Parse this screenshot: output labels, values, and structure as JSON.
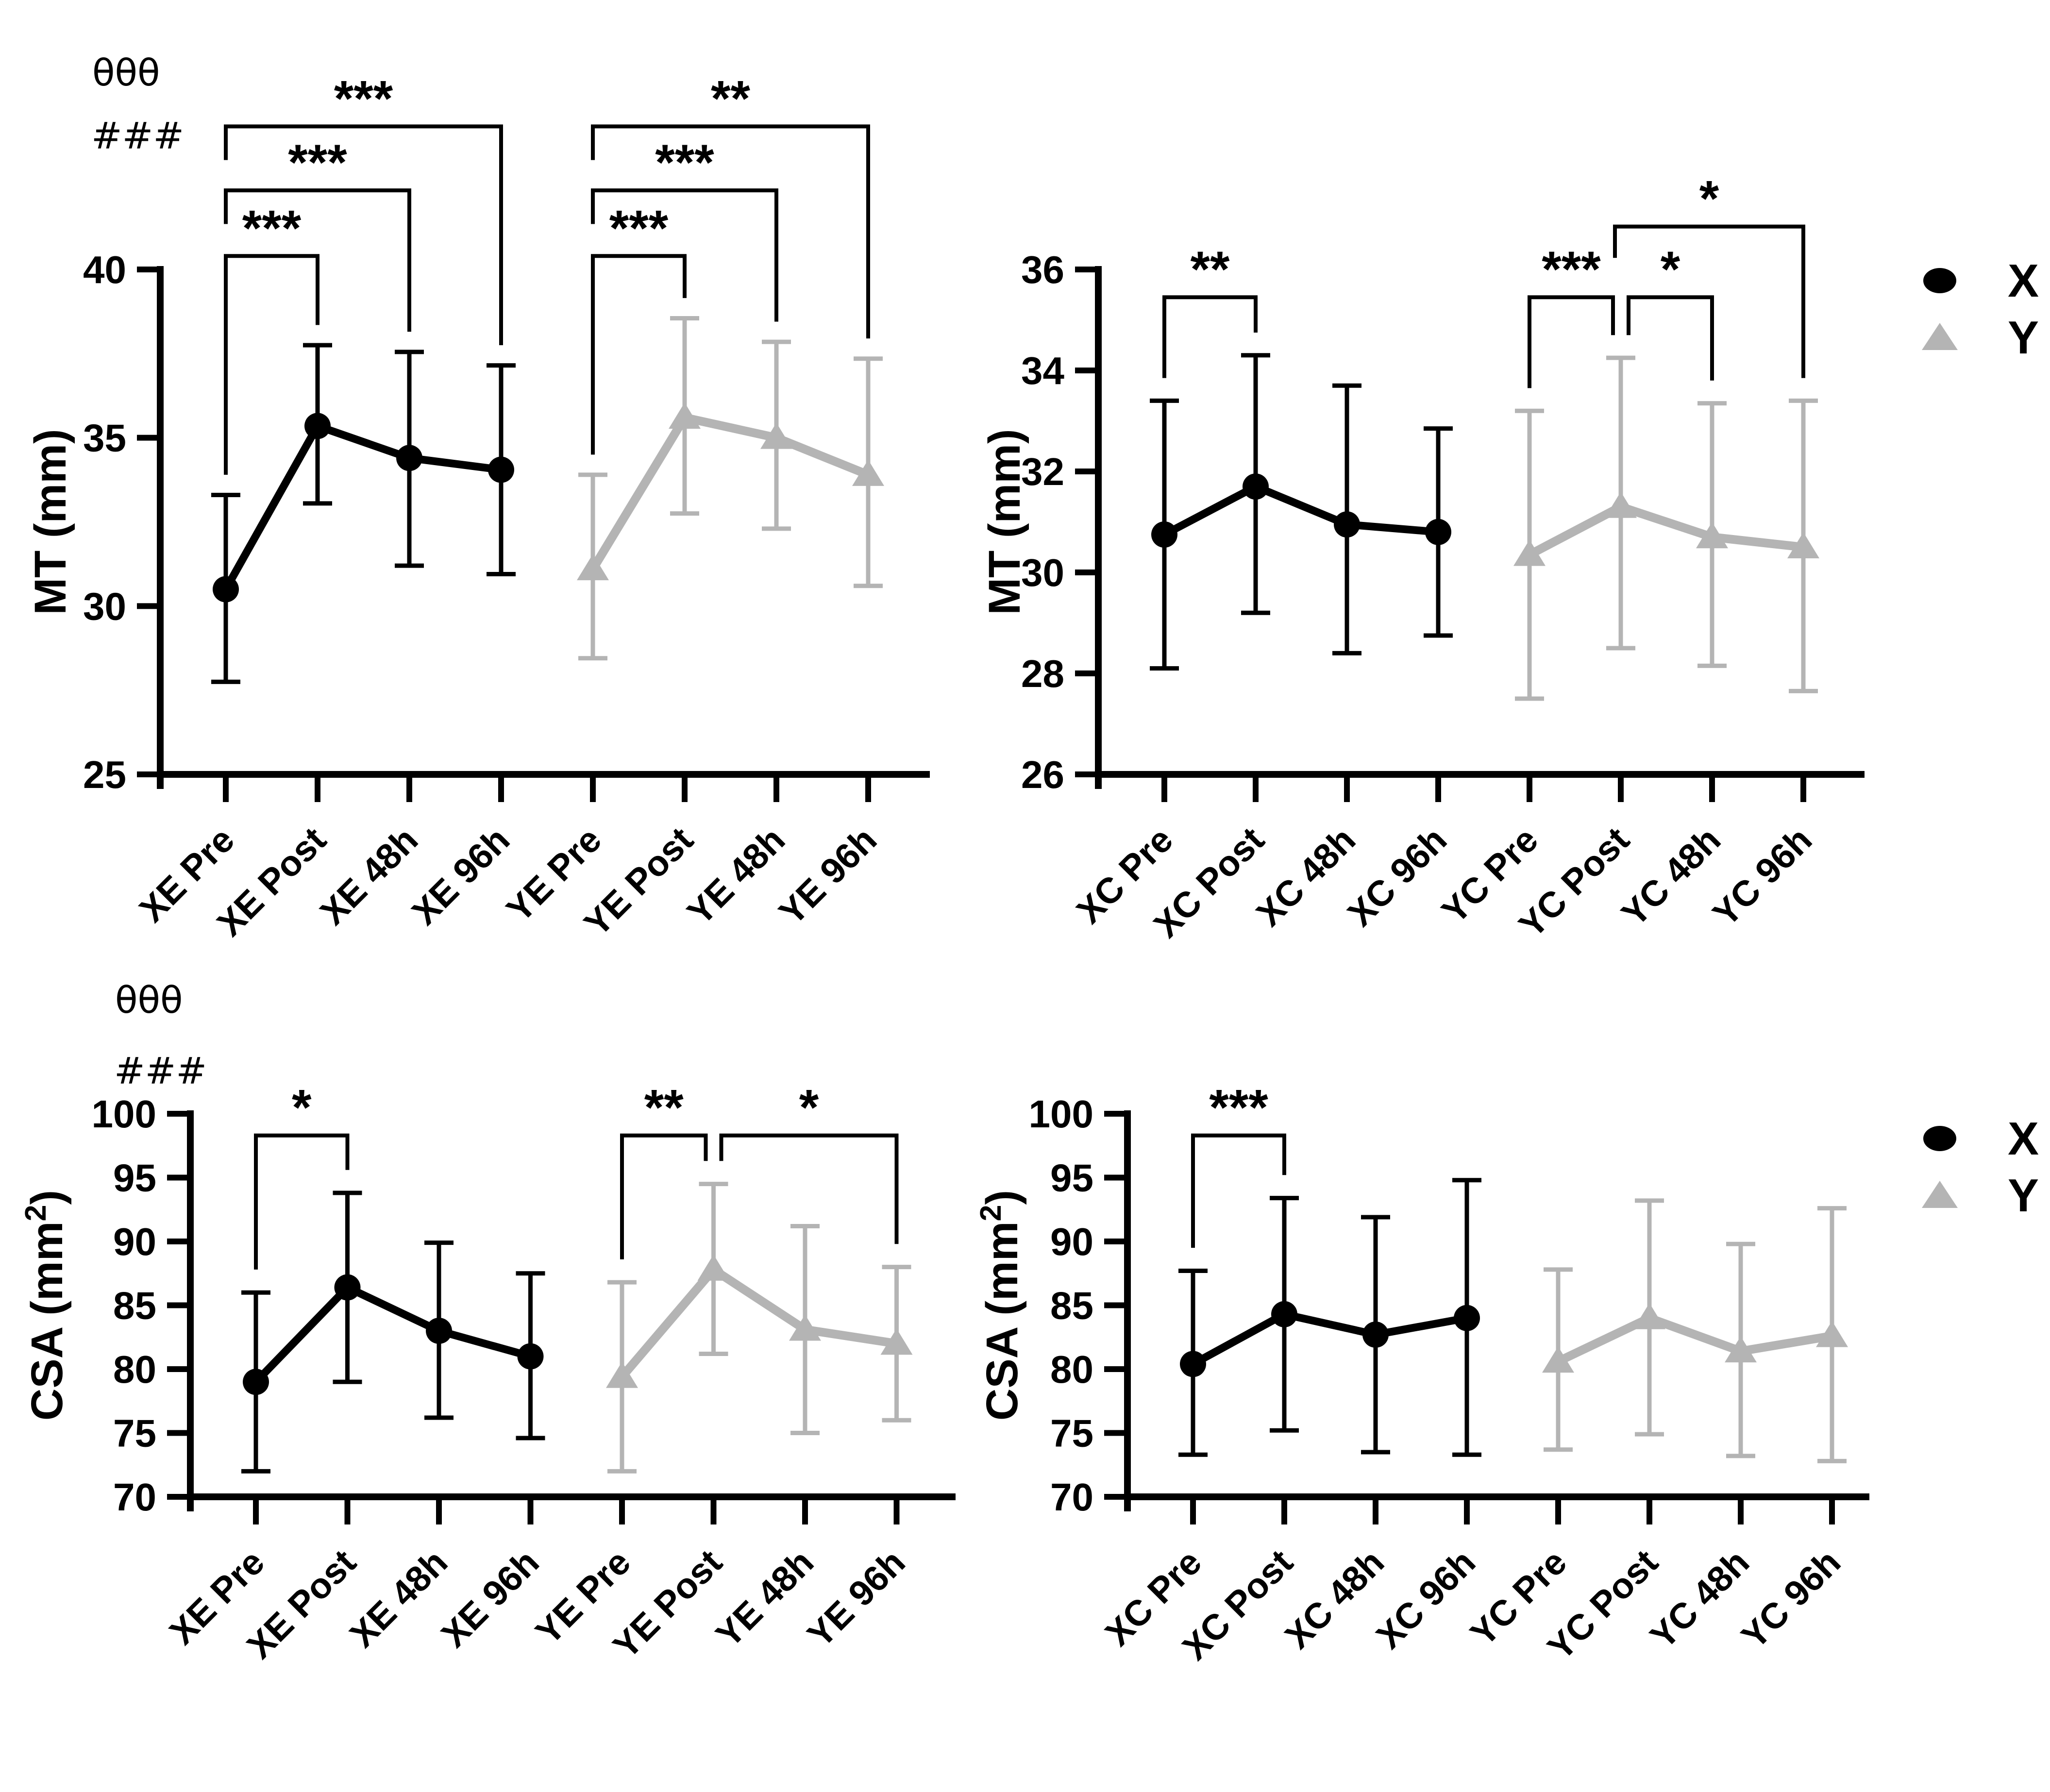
{
  "figure": {
    "background": "#ffffff",
    "annotations": {
      "block1": {
        "line1": "θθθ",
        "line2": "###"
      },
      "block2": {
        "line1": "θθθ",
        "line2": "###"
      }
    },
    "legend": {
      "items": [
        {
          "label": "X",
          "marker": "circle",
          "color": "#000000"
        },
        {
          "label": "Y",
          "marker": "triangle",
          "color": "#b4b4b4"
        }
      ]
    }
  },
  "chart_data": [
    {
      "id": "mt-exercise",
      "type": "line",
      "title": "",
      "ylabel_parts": [
        {
          "t": "MT (mm)"
        }
      ],
      "ylim": [
        25,
        40
      ],
      "yticks": [
        25,
        30,
        35,
        40
      ],
      "categories": [
        "XE Pre",
        "XE Post",
        "XE 48h",
        "XE 96h",
        "YE Pre",
        "YE Post",
        "YE 48h",
        "YE 96h"
      ],
      "series": [
        {
          "name": "X",
          "marker": "circle",
          "color": "#000000",
          "start": 0,
          "means": [
            30.5,
            35.35,
            34.4,
            34.05
          ],
          "upper": [
            33.3,
            37.75,
            37.55,
            37.15
          ],
          "lower": [
            27.75,
            33.05,
            31.2,
            30.95
          ]
        },
        {
          "name": "Y",
          "marker": "triangle",
          "color": "#b4b4b4",
          "start": 4,
          "means": [
            31.1,
            35.6,
            35.0,
            33.9
          ],
          "upper": [
            33.9,
            38.55,
            37.85,
            37.35
          ],
          "lower": [
            28.45,
            32.75,
            32.3,
            30.6
          ]
        }
      ],
      "significance": [
        {
          "from": 0,
          "to": 1,
          "label": "***",
          "bar_y": 40.4,
          "left": "error",
          "right": "error"
        },
        {
          "from": 0,
          "to": 2,
          "label": "***",
          "bar_y": 42.35,
          "left": "stub",
          "right": "error"
        },
        {
          "from": 0,
          "to": 3,
          "label": "***",
          "bar_y": 44.25,
          "left": "stub",
          "right": "error"
        },
        {
          "from": 4,
          "to": 5,
          "label": "***",
          "bar_y": 40.4,
          "left": "error",
          "right": "error"
        },
        {
          "from": 4,
          "to": 6,
          "label": "***",
          "bar_y": 42.35,
          "left": "stub",
          "right": "error"
        },
        {
          "from": 4,
          "to": 7,
          "label": "**",
          "bar_y": 44.25,
          "left": "stub",
          "right": "error"
        }
      ]
    },
    {
      "id": "mt-control",
      "type": "line",
      "title": "",
      "ylabel_parts": [
        {
          "t": "MT (mm)"
        }
      ],
      "ylim": [
        26,
        36
      ],
      "yticks": [
        26,
        28,
        30,
        32,
        34,
        36
      ],
      "categories": [
        "XC Pre",
        "XC Post",
        "XC 48h",
        "XC 96h",
        "YC Pre",
        "YC Post",
        "YC 48h",
        "YC 96h"
      ],
      "series": [
        {
          "name": "X",
          "marker": "circle",
          "color": "#000000",
          "start": 0,
          "means": [
            30.75,
            31.7,
            30.95,
            30.8
          ],
          "upper": [
            33.4,
            34.3,
            33.7,
            32.85
          ],
          "lower": [
            28.1,
            29.2,
            28.4,
            28.75
          ]
        },
        {
          "name": "Y",
          "marker": "triangle",
          "color": "#b4b4b4",
          "start": 4,
          "means": [
            30.35,
            31.3,
            30.7,
            30.5
          ],
          "upper": [
            33.2,
            34.25,
            33.35,
            33.4
          ],
          "lower": [
            27.5,
            28.5,
            28.15,
            27.65
          ]
        }
      ],
      "significance": [
        {
          "from": 0,
          "to": 1,
          "label": "**",
          "bar_y": 35.45,
          "left": "error",
          "right": "error"
        },
        {
          "from": 4,
          "to": 5,
          "label": "***",
          "bar_y": 35.45,
          "left": "error",
          "right": "error",
          "right_dx": -16
        },
        {
          "from": 5,
          "to": 6,
          "label": "*",
          "bar_y": 35.45,
          "left": "error",
          "right": "error",
          "left_dx": 16
        },
        {
          "from": 5,
          "to": 7,
          "label": "*",
          "bar_y": 36.85,
          "left": "stub",
          "right": "error",
          "left_dx": -12
        }
      ]
    },
    {
      "id": "csa-exercise",
      "type": "line",
      "title": "",
      "ylabel_parts": [
        {
          "t": "CSA (mm"
        },
        {
          "t": "2",
          "sup": true
        },
        {
          "t": ")"
        }
      ],
      "ylim": [
        70,
        100
      ],
      "yticks": [
        70,
        75,
        80,
        85,
        90,
        95,
        100
      ],
      "categories": [
        "XE Pre",
        "XE Post",
        "XE 48h",
        "XE 96h",
        "YE Pre",
        "YE Post",
        "YE 48h",
        "YE 96h"
      ],
      "series": [
        {
          "name": "X",
          "marker": "circle",
          "color": "#000000",
          "start": 0,
          "means": [
            79.0,
            86.4,
            83.0,
            81.0
          ],
          "upper": [
            86.0,
            93.8,
            89.9,
            87.5
          ],
          "lower": [
            72.0,
            79.0,
            76.2,
            74.6
          ]
        },
        {
          "name": "Y",
          "marker": "triangle",
          "color": "#b4b4b4",
          "start": 4,
          "means": [
            79.4,
            87.8,
            83.1,
            82.0
          ],
          "upper": [
            86.8,
            94.5,
            91.2,
            88.0
          ],
          "lower": [
            72.0,
            81.2,
            75.0,
            76.0
          ]
        }
      ],
      "significance": [
        {
          "from": 0,
          "to": 1,
          "label": "*",
          "bar_y": 98.3,
          "left": "error",
          "right": "error"
        },
        {
          "from": 4,
          "to": 5,
          "label": "**",
          "bar_y": 98.3,
          "left": "error",
          "right": "error",
          "right_dx": -16
        },
        {
          "from": 5,
          "to": 7,
          "label": "*",
          "bar_y": 98.3,
          "left": "error",
          "right": "error",
          "left_dx": 16
        }
      ]
    },
    {
      "id": "csa-control",
      "type": "line",
      "title": "",
      "ylabel_parts": [
        {
          "t": "CSA (mm"
        },
        {
          "t": "2",
          "sup": true
        },
        {
          "t": ")"
        }
      ],
      "ylim": [
        70,
        100
      ],
      "yticks": [
        70,
        75,
        80,
        85,
        90,
        95,
        100
      ],
      "categories": [
        "XC Pre",
        "XC Post",
        "XC 48h",
        "XC 96h",
        "YC Pre",
        "YC Post",
        "YC 48h",
        "YC 96h"
      ],
      "series": [
        {
          "name": "X",
          "marker": "circle",
          "color": "#000000",
          "start": 0,
          "means": [
            80.4,
            84.3,
            82.7,
            84.0
          ],
          "upper": [
            87.7,
            93.4,
            91.9,
            94.8
          ],
          "lower": [
            73.3,
            75.2,
            73.5,
            73.3
          ]
        },
        {
          "name": "Y",
          "marker": "triangle",
          "color": "#b4b4b4",
          "start": 4,
          "means": [
            80.6,
            84.0,
            81.4,
            82.6
          ],
          "upper": [
            87.8,
            93.2,
            89.8,
            92.6
          ],
          "lower": [
            73.7,
            74.9,
            73.2,
            72.8
          ]
        }
      ],
      "significance": [
        {
          "from": 0,
          "to": 1,
          "label": "***",
          "bar_y": 98.3,
          "left": "error",
          "right": "error"
        }
      ]
    }
  ]
}
